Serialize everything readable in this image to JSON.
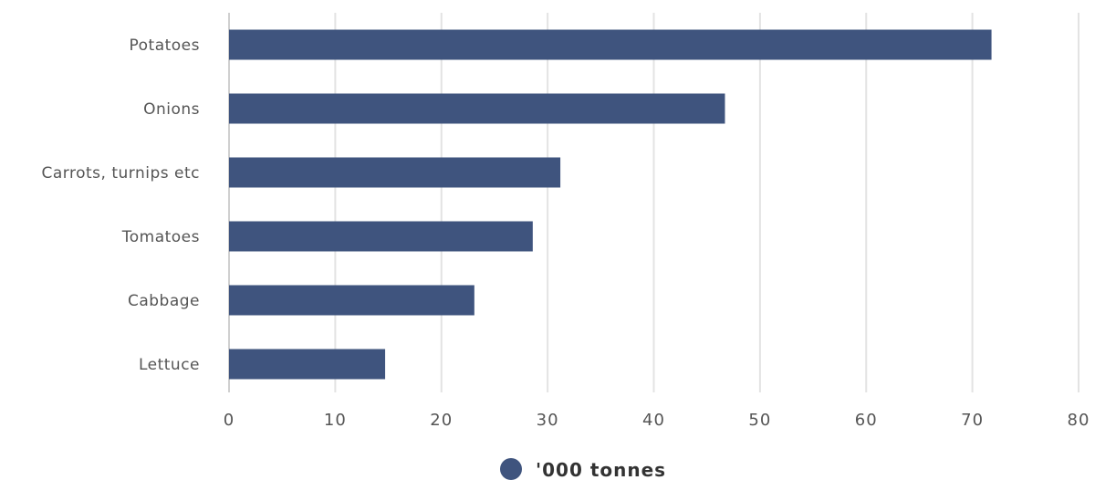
{
  "chart_data": {
    "type": "bar",
    "orientation": "horizontal",
    "categories": [
      "Potatoes",
      "Onions",
      "Carrots, turnips etc",
      "Tomatoes",
      "Cabbage",
      "Lettuce"
    ],
    "series": [
      {
        "name": "'000 tonnes",
        "values": [
          71.8,
          46.7,
          31.2,
          28.6,
          23.1,
          14.7
        ],
        "color": "#3f547e"
      }
    ],
    "xlim": [
      0,
      80
    ],
    "xticks": [
      0,
      10,
      20,
      30,
      40,
      50,
      60,
      70,
      80
    ],
    "grid": true,
    "legend_position": "bottom-center"
  }
}
